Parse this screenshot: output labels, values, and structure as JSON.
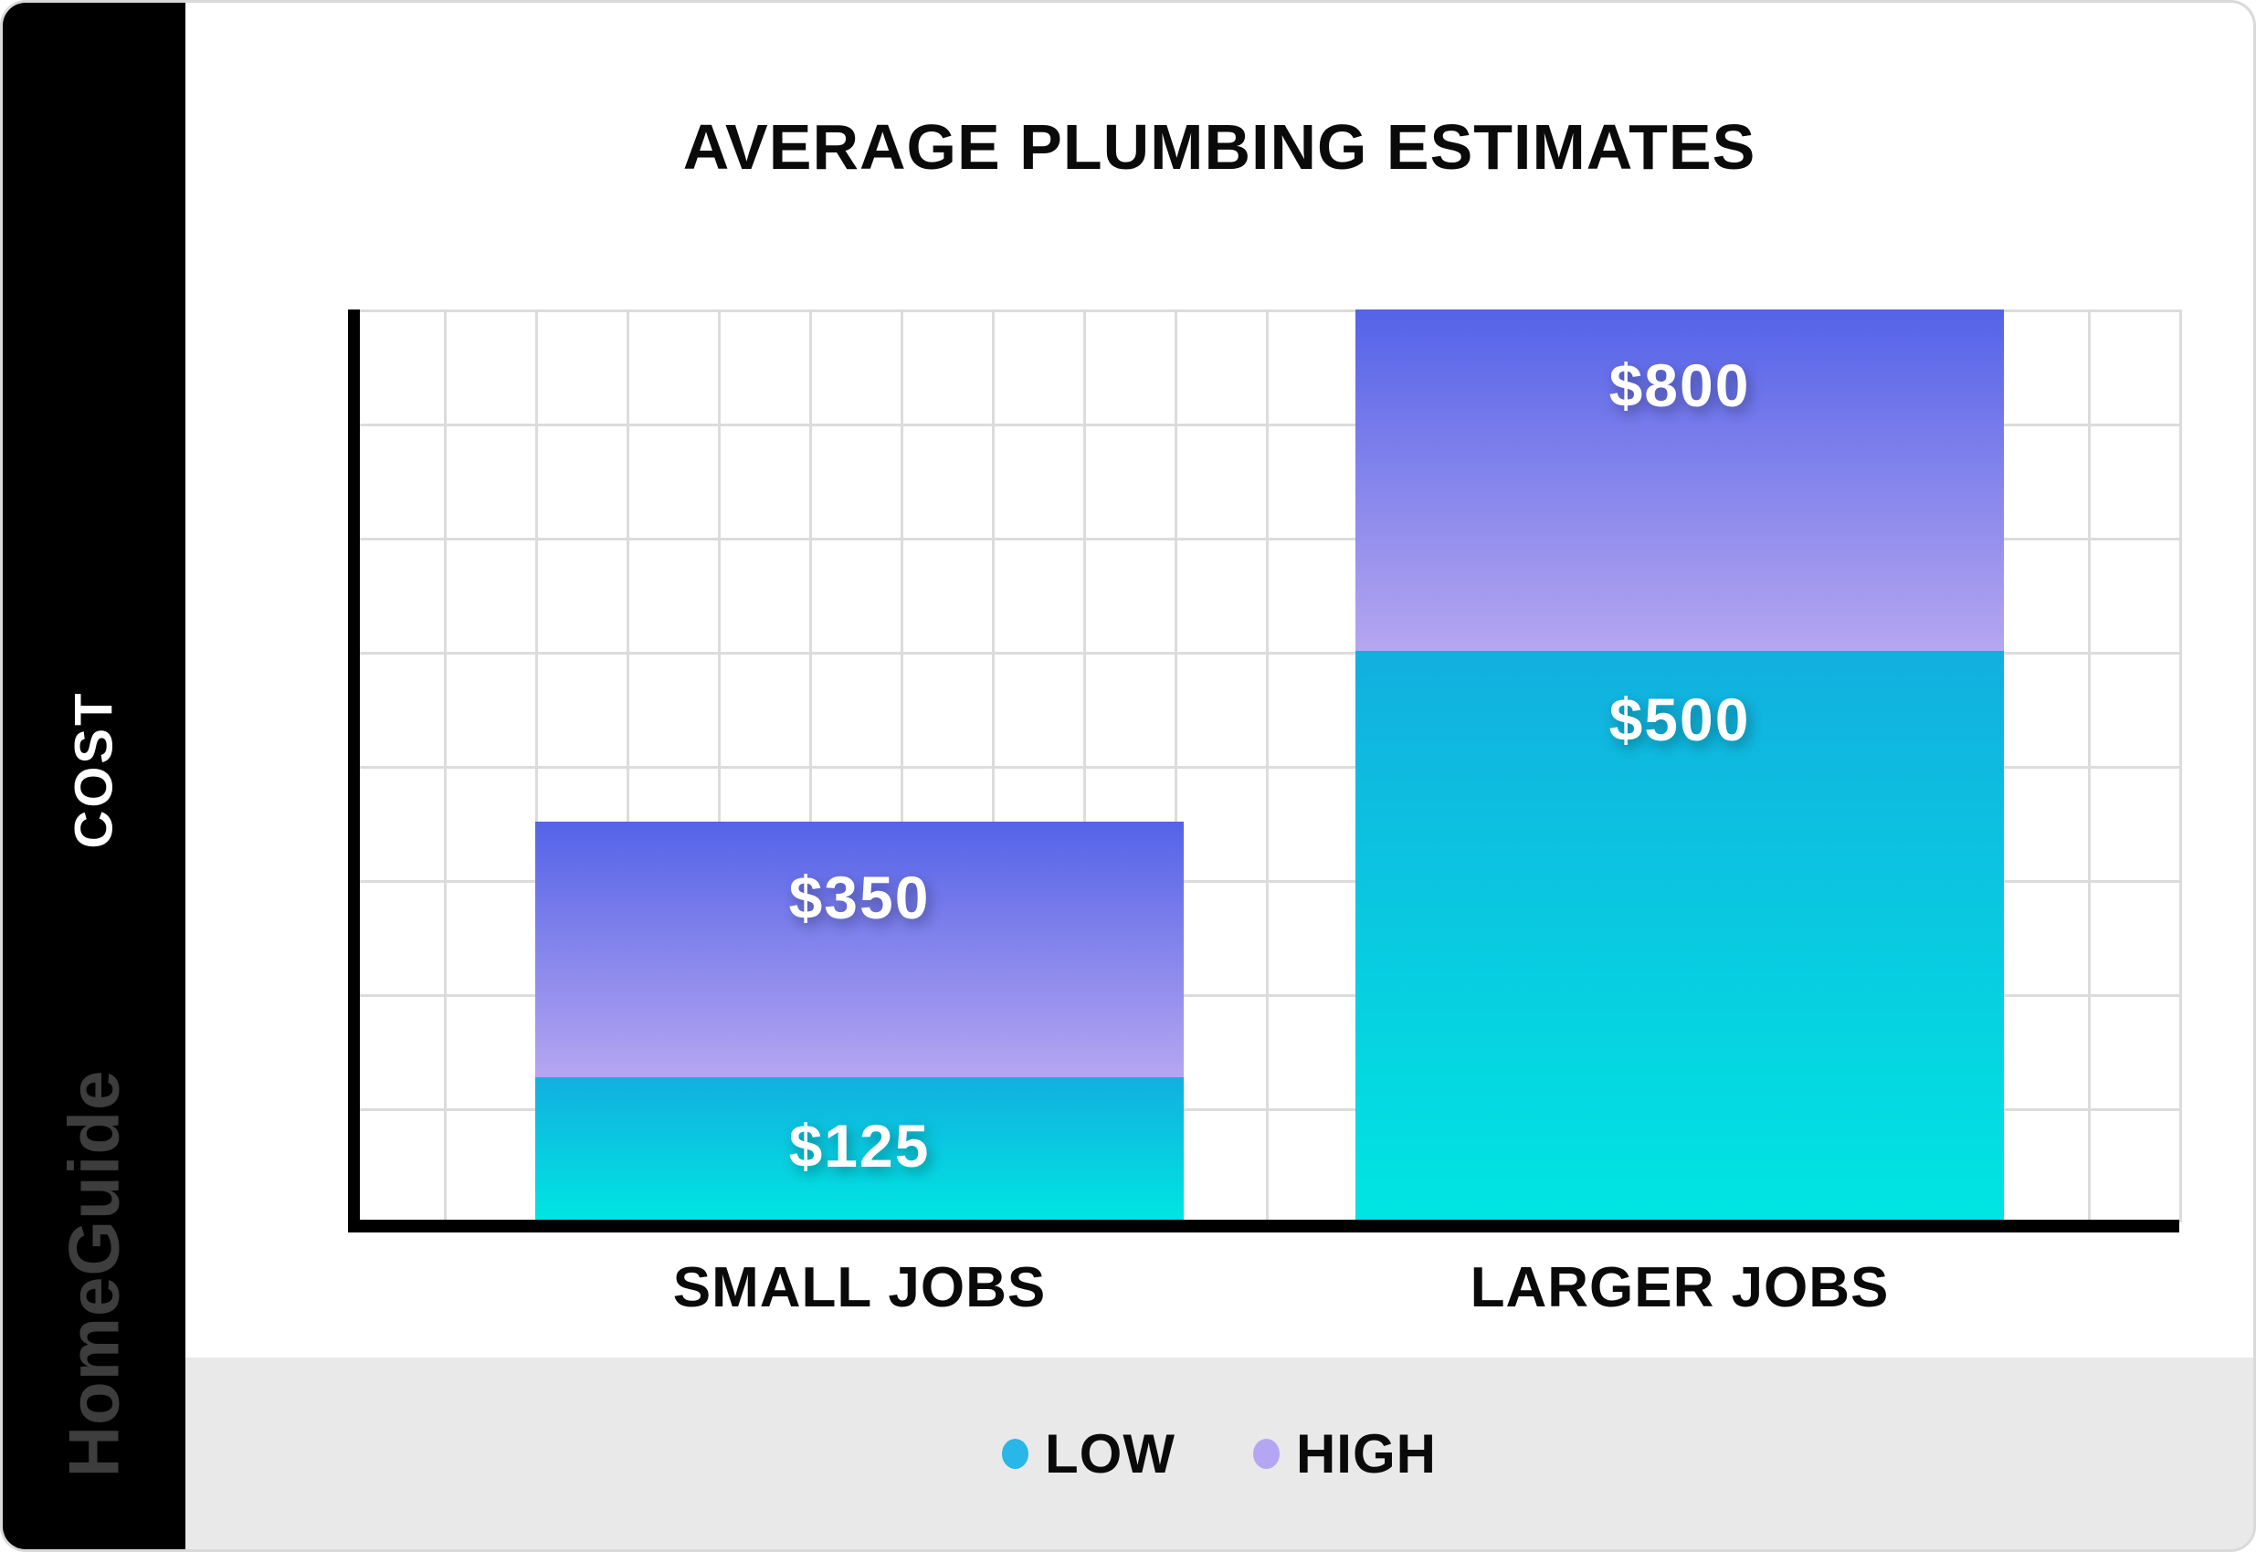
{
  "sidebar": {
    "cost_label": "COST",
    "brand": "HomeGuide"
  },
  "chart": {
    "title": "AVERAGE PLUMBING ESTIMATES"
  },
  "chart_data": {
    "type": "bar",
    "subtype": "low-high overlay (range) bars with value labels",
    "title": "AVERAGE PLUMBING ESTIMATES",
    "categories": [
      "SMALL JOBS",
      "LARGER JOBS"
    ],
    "series": [
      {
        "name": "LOW",
        "values": [
          125,
          500
        ],
        "labels": [
          "$125",
          "$500"
        ],
        "color_top": "#12afdf",
        "color_bottom": "#00e5e2",
        "dot_color": "#29b6e8"
      },
      {
        "name": "HIGH",
        "values": [
          350,
          800
        ],
        "labels": [
          "$350",
          "$800"
        ],
        "color_top": "#5463e8",
        "color_bottom": "#b5a6f0",
        "dot_color": "#b4a6f2"
      }
    ],
    "xlabel": "",
    "ylabel": "COST",
    "ylim": [
      0,
      800
    ],
    "y_grid_step": 100,
    "grid": true,
    "y_tick_labels_shown": false,
    "legend_position": "bottom"
  },
  "colors": {
    "footer_bg": "#e9e9e9",
    "grid": "#dcdcdc",
    "axis": "#000000",
    "sidebar_bg": "#000000",
    "value_label_text": "#ffffff"
  }
}
